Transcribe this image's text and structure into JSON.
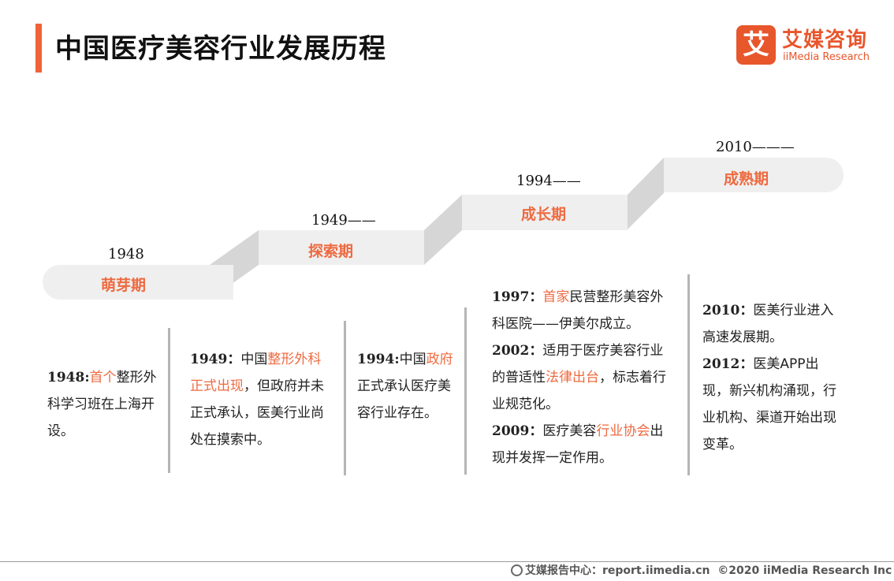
{
  "header": {
    "title": "中国医疗美容行业发展历程"
  },
  "logo": {
    "mark": "艾",
    "name_cn": "艾媒咨询",
    "name_en": "iiMedia Research",
    "color": "#e8562c"
  },
  "stages": [
    {
      "year": "1948",
      "name": "萌芽期"
    },
    {
      "year": "1949——",
      "name": "探索期"
    },
    {
      "year": "1994——",
      "name": "成长期"
    },
    {
      "year": "2010———",
      "name": "成熟期"
    }
  ],
  "events": {
    "e1948": {
      "year": "1948:",
      "t1": "首个",
      "t2": "整形外科学习班在上海开设。"
    },
    "e1949": {
      "year": "1949：",
      "t1": "中国",
      "t2": "整形外科正式出现",
      "t3": "，但政府并未正式承认，医美行业尚处在摸索中。"
    },
    "e1994": {
      "year": "1994:",
      "t1": "中国",
      "t2": "政府",
      "t3": "正式承认医疗美容行业存在。"
    },
    "e1997": {
      "year": "1997：",
      "t1": "首家",
      "t2": "民营整形美容外科医院——伊美尔成立。"
    },
    "e2002": {
      "year": "2002：",
      "t1": "适用于医疗美容行业的普适性",
      "t2": "法律出台",
      "t3": "，标志着行业规范化。"
    },
    "e2009": {
      "year": "2009：",
      "t1": "医疗美容",
      "t2": "行业协会",
      "t3": "出现并发挥一定作用。"
    },
    "e2010": {
      "year": "2010：",
      "t1": "医美行业进入高速发展期。"
    },
    "e2012": {
      "year": "2012：",
      "t1": "医美APP出现，新兴机构涌现，行业机构、渠道开始出现变革。"
    }
  },
  "footer": {
    "source": "艾媒报告中心：report.iimedia.cn",
    "copyright": "©2020  iiMedia Research  Inc"
  },
  "colors": {
    "accent": "#ee6a40",
    "step_top": "#efefef",
    "step_side": "#d6d6d6"
  }
}
